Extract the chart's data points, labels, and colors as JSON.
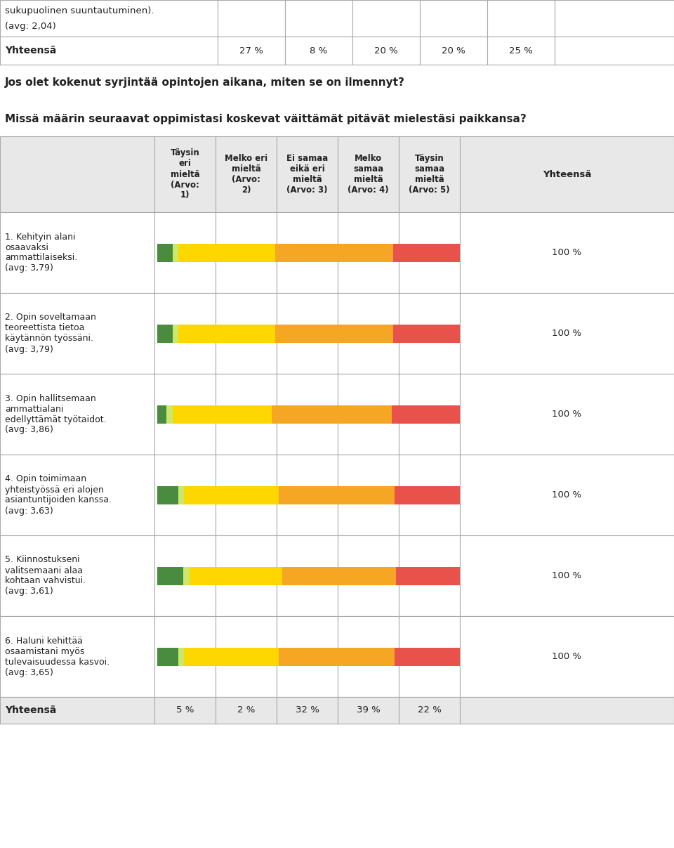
{
  "top_row1_line1": "sukupuolinen suuntautuminen).",
  "top_row1_line2": "(avg: 2,04)",
  "top_yhteensa_label": "Yhteensä",
  "top_yhteensa_values": [
    "27 %",
    "8 %",
    "20 %",
    "20 %",
    "25 %"
  ],
  "middle_question": "Jos olet kokenut syrjintää opintojen aikana, miten se on ilmennyt?",
  "section_title": "Missä määrin seuraavat oppimistasi koskevat väittämät pitävät mielestäsi paikkansa?",
  "col_headers": [
    "Täysin\neri\nmieltä\n(Arvo:\n1)",
    "Melko eri\nmieltä\n(Arvo:\n2)",
    "Ei samaa\neikä eri\nmieltä\n(Arvo: 3)",
    "Melko\nsamaa\nmieltä\n(Arvo: 4)",
    "Täysin\nsamaa\nmieltä\n(Arvo: 5)",
    "Yhteensä"
  ],
  "rows": [
    {
      "label": "1. Kehityin alani\nosaavaksi\nammattilaiseksi.\n(avg: 3,79)",
      "values": [
        5,
        2,
        32,
        39,
        22
      ]
    },
    {
      "label": "2. Opin soveltamaan\nteoreettista tietoa\nkäytännön työssäni.\n(avg: 3,79)",
      "values": [
        5,
        2,
        32,
        39,
        22
      ]
    },
    {
      "label": "3. Opin hallitsemaan\nammattialani\nedellyttämät työtaidot.\n(avg: 3,86)",
      "values": [
        3,
        2,
        32,
        39,
        22
      ]
    },
    {
      "label": "4. Opin toimimaan\nyhteistyössä eri alojen\nasiantuntijoiden kanssa.\n(avg: 3,63)",
      "values": [
        7,
        2,
        32,
        39,
        22
      ]
    },
    {
      "label": "5. Kiinnostukseni\nvalitsemaani alaa\nkohtaan vahvistui.\n(avg: 3,61)",
      "values": [
        9,
        2,
        32,
        39,
        22
      ]
    },
    {
      "label": "6. Haluni kehittää\nosaamistani myös\ntulevaisuudessa kasvoi.\n(avg: 3,65)",
      "values": [
        7,
        2,
        32,
        39,
        22
      ]
    }
  ],
  "footer_values": [
    "5 %",
    "2 %",
    "32 %",
    "39 %",
    "22 %"
  ],
  "bar_colors": [
    "#4a8c3f",
    "#c8e86e",
    "#ffd700",
    "#f5a623",
    "#e8524a"
  ],
  "text_color": "#222222",
  "border_color": "#aaaaaa",
  "header_bg": "#e8e8e8",
  "row_bg": "#ffffff",
  "total_label": "100 %",
  "yhteensa_footer": "Yhteensä"
}
